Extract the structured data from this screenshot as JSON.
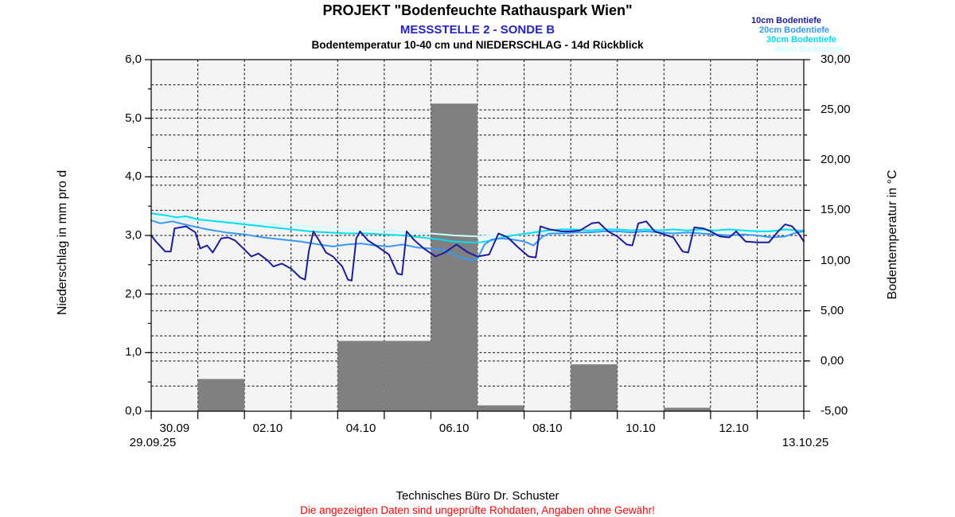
{
  "header": {
    "title": "PROJEKT \"Bodenfeuchte Rathauspark Wien\"",
    "subtitle": "MESSSTELLE 2 - SONDE B",
    "subsubtitle": "Bodentemperatur 10-40 cm und NIEDERSCHLAG - 14d Rückblick"
  },
  "legend": {
    "items": [
      {
        "label": "10cm Bodentiefe",
        "color": "#1c1ca0"
      },
      {
        "label": "20cm Bodentiefe",
        "color": "#3399ff"
      },
      {
        "label": "30cm Bodentiefe",
        "color": "#00dff0"
      },
      {
        "label": "40cm Bodentiefe",
        "color": "#ccffff"
      }
    ]
  },
  "footer": {
    "company": "Technisches Büro Dr. Schuster",
    "disclaimer": "Die angezeigten Daten sind ungeprüfte Rohdaten, Angaben ohne Gewähr!"
  },
  "chart_data": {
    "type": "bar+line",
    "title": "Bodentemperatur 10-40 cm und NIEDERSCHLAG - 14d Rückblick",
    "plot_bg": "#f4f4f4",
    "bar_color": "#808080",
    "grid": "dashed-black",
    "x_axis": {
      "start_label": "29.09.25",
      "end_label": "13.10.25",
      "days": 14,
      "tick_labels": [
        "30.09",
        "02.10",
        "04.10",
        "06.10",
        "08.10",
        "10.10",
        "12.10"
      ],
      "tick_label_cell_index": [
        0,
        2,
        4,
        6,
        8,
        10,
        12
      ]
    },
    "left_axis": {
      "label": "Niederschlag in mm pro d",
      "min": 0,
      "max": 6,
      "tick_values": [
        0,
        1,
        2,
        3,
        4,
        5,
        6
      ],
      "tick_labels": [
        "0,0",
        "1,0",
        "2,0",
        "3,0",
        "4,0",
        "5,0",
        "6,0"
      ]
    },
    "right_axis": {
      "label": "Bodentemperatur in  °C",
      "min": -5,
      "max": 30,
      "tick_values": [
        -5,
        0,
        5,
        10,
        15,
        20,
        25,
        30
      ],
      "tick_labels": [
        "-5,00",
        "0,00",
        "5,00",
        "10,00",
        "15,00",
        "20,00",
        "25,00",
        "30,00"
      ]
    },
    "precipitation_mm": {
      "dates": [
        "29.09",
        "30.09",
        "01.10",
        "02.10",
        "03.10",
        "04.10",
        "05.10",
        "06.10",
        "07.10",
        "08.10",
        "09.10",
        "10.10",
        "11.10",
        "12.10"
      ],
      "values": [
        0,
        0.55,
        0,
        0,
        1.2,
        1.2,
        5.25,
        0.1,
        0,
        0.8,
        0,
        0.06,
        0,
        0
      ]
    },
    "series": [
      {
        "name": "40cm Bodentiefe",
        "color": "#ccffff",
        "points": [
          [
            0,
            14.2
          ],
          [
            1,
            14.0
          ],
          [
            2,
            13.8
          ],
          [
            3,
            13.5
          ],
          [
            4,
            13.2
          ],
          [
            5,
            13.0
          ],
          [
            6,
            12.7
          ],
          [
            6.5,
            12.5
          ],
          [
            7,
            12.4
          ],
          [
            7.5,
            12.5
          ],
          [
            8,
            12.6
          ],
          [
            9,
            12.9
          ],
          [
            10,
            13.0
          ],
          [
            11,
            13.0
          ],
          [
            12,
            13.0
          ],
          [
            13,
            13.0
          ],
          [
            14,
            13.0
          ]
        ]
      },
      {
        "name": "30cm Bodentiefe",
        "color": "#00dff0",
        "points": [
          [
            0,
            14.7
          ],
          [
            0.3,
            14.5
          ],
          [
            0.55,
            14.3
          ],
          [
            0.75,
            14.4
          ],
          [
            1.0,
            14.1
          ],
          [
            1.4,
            13.9
          ],
          [
            1.8,
            13.7
          ],
          [
            2.2,
            13.5
          ],
          [
            2.6,
            13.3
          ],
          [
            3.0,
            13.1
          ],
          [
            3.4,
            12.9
          ],
          [
            3.8,
            12.8
          ],
          [
            4.2,
            12.7
          ],
          [
            4.6,
            12.7
          ],
          [
            5.0,
            12.6
          ],
          [
            5.4,
            12.5
          ],
          [
            5.8,
            12.3
          ],
          [
            6.2,
            12.1
          ],
          [
            6.5,
            11.9
          ],
          [
            6.8,
            11.8
          ],
          [
            7.05,
            11.8
          ],
          [
            7.3,
            12.0
          ],
          [
            7.6,
            12.4
          ],
          [
            7.9,
            12.6
          ],
          [
            8.2,
            12.8
          ],
          [
            8.5,
            13.0
          ],
          [
            8.8,
            13.1
          ],
          [
            9.1,
            13.1
          ],
          [
            9.4,
            13.0
          ],
          [
            9.7,
            13.1
          ],
          [
            10.0,
            13.1
          ],
          [
            10.3,
            13.0
          ],
          [
            10.6,
            13.1
          ],
          [
            10.9,
            13.0
          ],
          [
            11.2,
            13.1
          ],
          [
            11.5,
            13.0
          ],
          [
            11.8,
            13.1
          ],
          [
            12.1,
            13.0
          ],
          [
            12.4,
            13.1
          ],
          [
            12.7,
            13.0
          ],
          [
            13.0,
            12.9
          ],
          [
            13.3,
            12.9
          ],
          [
            13.6,
            13.1
          ],
          [
            13.9,
            13.0
          ],
          [
            14,
            13.0
          ]
        ]
      },
      {
        "name": "20cm Bodentiefe",
        "color": "#3399ff",
        "points": [
          [
            0,
            14.0
          ],
          [
            0.2,
            13.7
          ],
          [
            0.45,
            13.9
          ],
          [
            0.8,
            13.5
          ],
          [
            1.2,
            13.1
          ],
          [
            1.6,
            12.8
          ],
          [
            2.0,
            12.6
          ],
          [
            2.4,
            12.3
          ],
          [
            2.8,
            12.1
          ],
          [
            3.2,
            11.9
          ],
          [
            3.6,
            11.6
          ],
          [
            3.9,
            11.4
          ],
          [
            4.2,
            11.6
          ],
          [
            4.5,
            11.7
          ],
          [
            4.8,
            11.5
          ],
          [
            5.1,
            11.4
          ],
          [
            5.4,
            11.6
          ],
          [
            5.7,
            11.3
          ],
          [
            6.0,
            11.2
          ],
          [
            6.3,
            11.0
          ],
          [
            6.6,
            10.4
          ],
          [
            6.85,
            10.0
          ],
          [
            7.0,
            10.2
          ],
          [
            7.15,
            11.6
          ],
          [
            7.3,
            12.1
          ],
          [
            7.5,
            12.2
          ],
          [
            7.75,
            12.1
          ],
          [
            8.0,
            11.9
          ],
          [
            8.2,
            11.5
          ],
          [
            8.4,
            12.4
          ],
          [
            8.55,
            12.7
          ],
          [
            8.8,
            12.7
          ],
          [
            9.1,
            12.8
          ],
          [
            9.4,
            12.8
          ],
          [
            9.7,
            12.9
          ],
          [
            10.0,
            12.9
          ],
          [
            10.3,
            12.8
          ],
          [
            10.6,
            12.9
          ],
          [
            10.9,
            12.8
          ],
          [
            11.2,
            12.7
          ],
          [
            11.5,
            12.8
          ],
          [
            11.8,
            12.7
          ],
          [
            12.1,
            12.6
          ],
          [
            12.4,
            12.5
          ],
          [
            12.7,
            12.6
          ],
          [
            13.0,
            12.5
          ],
          [
            13.3,
            12.3
          ],
          [
            13.6,
            12.4
          ],
          [
            13.85,
            12.8
          ],
          [
            14,
            12.9
          ]
        ]
      },
      {
        "name": "10cm Bodentiefe",
        "color": "#1c1ca0",
        "points": [
          [
            0,
            12.5
          ],
          [
            0.1,
            11.9
          ],
          [
            0.3,
            10.9
          ],
          [
            0.42,
            10.9
          ],
          [
            0.5,
            13.2
          ],
          [
            0.75,
            13.4
          ],
          [
            0.95,
            12.8
          ],
          [
            1.05,
            11.2
          ],
          [
            1.2,
            11.5
          ],
          [
            1.32,
            10.8
          ],
          [
            1.5,
            12.2
          ],
          [
            1.65,
            12.3
          ],
          [
            1.8,
            12.0
          ],
          [
            2.0,
            11.1
          ],
          [
            2.15,
            10.4
          ],
          [
            2.3,
            10.7
          ],
          [
            2.5,
            10.0
          ],
          [
            2.62,
            9.4
          ],
          [
            2.8,
            9.7
          ],
          [
            3.0,
            9.2
          ],
          [
            3.2,
            8.3
          ],
          [
            3.3,
            8.1
          ],
          [
            3.38,
            10.9
          ],
          [
            3.48,
            12.9
          ],
          [
            3.6,
            12.0
          ],
          [
            3.75,
            10.8
          ],
          [
            3.9,
            10.4
          ],
          [
            4.1,
            9.4
          ],
          [
            4.22,
            8.1
          ],
          [
            4.3,
            8.0
          ],
          [
            4.4,
            12.2
          ],
          [
            4.48,
            12.9
          ],
          [
            4.65,
            12.0
          ],
          [
            4.85,
            11.4
          ],
          [
            5.1,
            10.6
          ],
          [
            5.28,
            8.7
          ],
          [
            5.38,
            8.6
          ],
          [
            5.48,
            12.9
          ],
          [
            5.65,
            12.0
          ],
          [
            5.85,
            11.2
          ],
          [
            6.1,
            10.4
          ],
          [
            6.3,
            10.8
          ],
          [
            6.55,
            11.6
          ],
          [
            6.8,
            10.8
          ],
          [
            7.0,
            10.4
          ],
          [
            7.25,
            10.6
          ],
          [
            7.45,
            12.7
          ],
          [
            7.65,
            12.3
          ],
          [
            7.85,
            11.4
          ],
          [
            8.1,
            10.4
          ],
          [
            8.25,
            10.3
          ],
          [
            8.35,
            13.4
          ],
          [
            8.55,
            13.1
          ],
          [
            8.8,
            12.9
          ],
          [
            9.0,
            12.9
          ],
          [
            9.2,
            13.0
          ],
          [
            9.45,
            13.7
          ],
          [
            9.6,
            13.8
          ],
          [
            9.8,
            12.9
          ],
          [
            10.0,
            12.4
          ],
          [
            10.2,
            11.6
          ],
          [
            10.32,
            11.5
          ],
          [
            10.45,
            13.7
          ],
          [
            10.62,
            13.9
          ],
          [
            10.8,
            12.9
          ],
          [
            11.0,
            12.6
          ],
          [
            11.2,
            12.3
          ],
          [
            11.4,
            10.9
          ],
          [
            11.52,
            10.8
          ],
          [
            11.65,
            13.3
          ],
          [
            11.85,
            13.2
          ],
          [
            12.0,
            12.9
          ],
          [
            12.2,
            12.4
          ],
          [
            12.4,
            12.3
          ],
          [
            12.55,
            12.9
          ],
          [
            12.75,
            11.9
          ],
          [
            13.0,
            11.8
          ],
          [
            13.25,
            11.8
          ],
          [
            13.45,
            12.9
          ],
          [
            13.6,
            13.6
          ],
          [
            13.75,
            13.4
          ],
          [
            13.9,
            12.6
          ],
          [
            14,
            11.9
          ]
        ]
      }
    ]
  }
}
